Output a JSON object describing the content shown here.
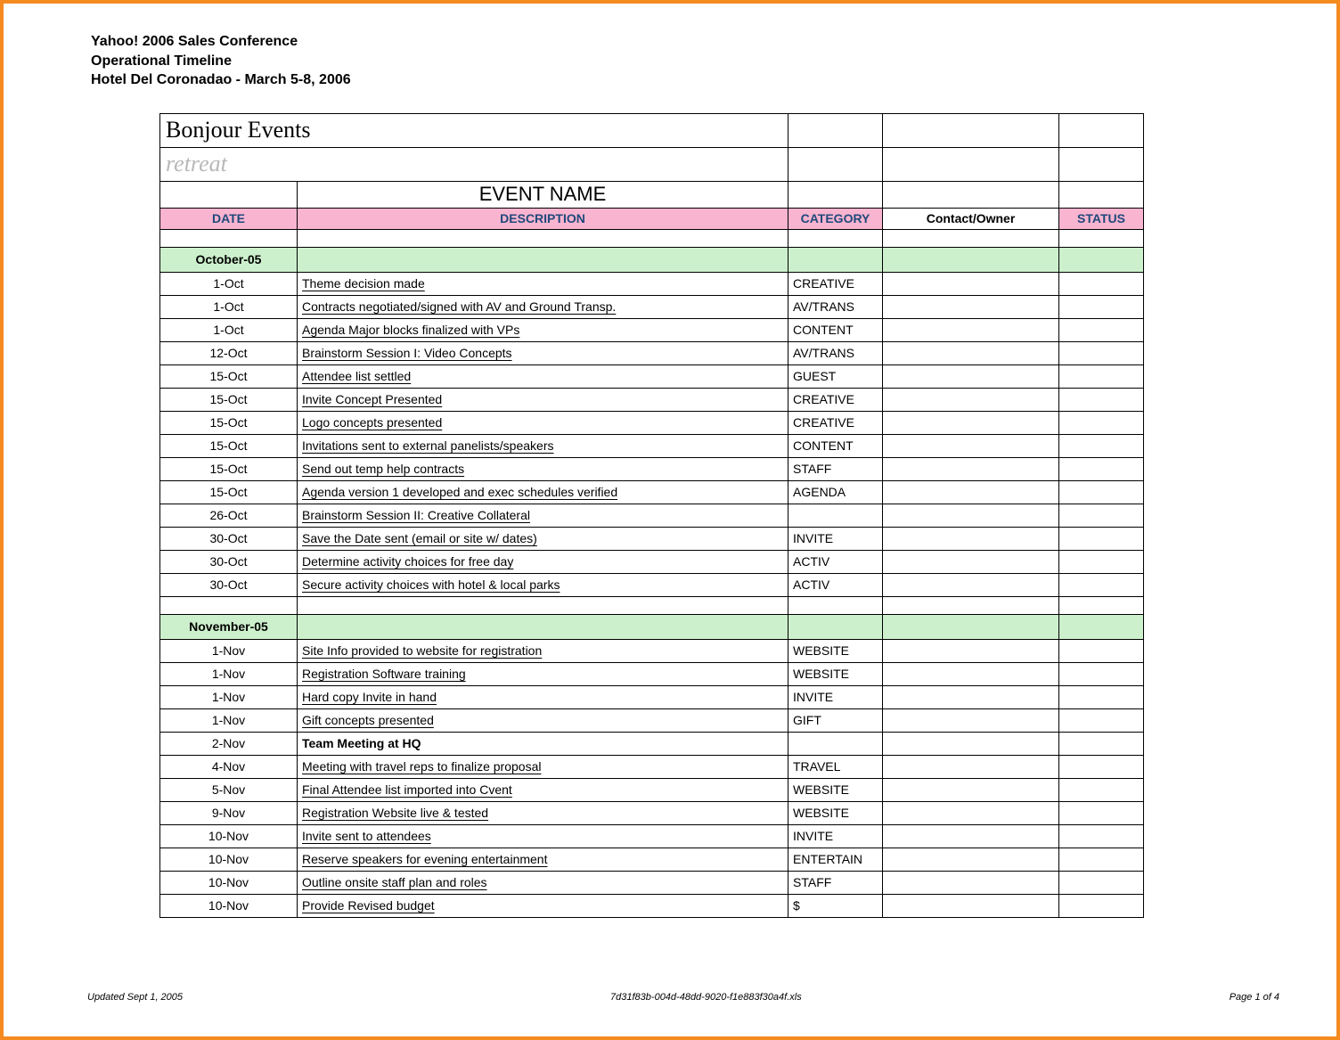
{
  "header": {
    "line1": "Yahoo! 2006 Sales Conference",
    "line2": "Operational Timeline",
    "line3": "Hotel Del Coronadao - March 5-8, 2006"
  },
  "banner": {
    "brand": "Bonjour Events",
    "retreat": "retreat",
    "event_name_label": "EVENT NAME"
  },
  "columns": {
    "date": "DATE",
    "description": "DESCRIPTION",
    "category": "CATEGORY",
    "owner": "Contact/Owner",
    "status": "STATUS"
  },
  "colors": {
    "frame_border": "#f58a1f",
    "header_pink": "#f9b4d0",
    "header_pink_text": "#20497a",
    "month_green": "#cdf0cc",
    "retreat_gray": "#b8b8b8"
  },
  "sections": [
    {
      "month": "October-05",
      "rows": [
        {
          "date": "1-Oct",
          "desc": "Theme decision made",
          "cat": "CREATIVE"
        },
        {
          "date": "1-Oct",
          "desc": "Contracts negotiated/signed with AV and Ground Transp.",
          "cat": "AV/TRANS"
        },
        {
          "date": "1-Oct",
          "desc": "Agenda Major blocks finalized with VPs",
          "cat": "CONTENT"
        },
        {
          "date": "12-Oct",
          "desc": "Brainstorm Session I: Video Concepts",
          "cat": "AV/TRANS"
        },
        {
          "date": "15-Oct",
          "desc": "Attendee list settled",
          "cat": "GUEST"
        },
        {
          "date": "15-Oct",
          "desc": "Invite Concept Presented",
          "cat": "CREATIVE"
        },
        {
          "date": "15-Oct",
          "desc": "Logo concepts presented",
          "cat": "CREATIVE"
        },
        {
          "date": "15-Oct",
          "desc": "Invitations sent to external panelists/speakers",
          "cat": "CONTENT"
        },
        {
          "date": "15-Oct",
          "desc": "Send out temp help contracts",
          "cat": "STAFF"
        },
        {
          "date": "15-Oct",
          "desc": "Agenda version 1 developed and exec schedules verified",
          "cat": "AGENDA"
        },
        {
          "date": "26-Oct",
          "desc": "Brainstorm Session II: Creative Collateral",
          "cat": ""
        },
        {
          "date": "30-Oct",
          "desc": "Save the Date sent (email or site w/ dates)",
          "cat": "INVITE"
        },
        {
          "date": "30-Oct",
          "desc": "Determine activity choices for free day",
          "cat": "ACTIV"
        },
        {
          "date": "30-Oct",
          "desc": "Secure activity choices with hotel & local parks",
          "cat": "ACTIV"
        }
      ]
    },
    {
      "month": "November-05",
      "rows": [
        {
          "date": "1-Nov",
          "desc": "Site Info provided to website for registration",
          "cat": "WEBSITE"
        },
        {
          "date": "1-Nov",
          "desc": "Registration Software training",
          "cat": "WEBSITE"
        },
        {
          "date": "1-Nov",
          "desc": "Hard copy Invite in hand",
          "cat": "INVITE"
        },
        {
          "date": "1-Nov",
          "desc": "Gift concepts presented",
          "cat": "GIFT"
        },
        {
          "date": "2-Nov",
          "desc": "Team Meeting at HQ",
          "cat": "",
          "bold": true
        },
        {
          "date": "4-Nov",
          "desc": "Meeting with travel reps to finalize proposal",
          "cat": "TRAVEL"
        },
        {
          "date": "5-Nov",
          "desc": "Final Attendee list imported into Cvent",
          "cat": "WEBSITE"
        },
        {
          "date": "9-Nov",
          "desc": "Registration Website live & tested",
          "cat": "WEBSITE"
        },
        {
          "date": "10-Nov",
          "desc": "Invite sent to attendees",
          "cat": "INVITE"
        },
        {
          "date": "10-Nov",
          "desc": "Reserve speakers for evening entertainment",
          "cat": "ENTERTAIN"
        },
        {
          "date": "10-Nov",
          "desc": "Outline onsite staff plan and roles",
          "cat": "STAFF"
        },
        {
          "date": "10-Nov",
          "desc": "Provide Revised budget",
          "cat": "$"
        }
      ]
    }
  ],
  "footer": {
    "left": "Updated Sept 1, 2005",
    "center": "7d31f83b-004d-48dd-9020-f1e883f30a4f.xls",
    "right": "Page 1 of 4"
  }
}
